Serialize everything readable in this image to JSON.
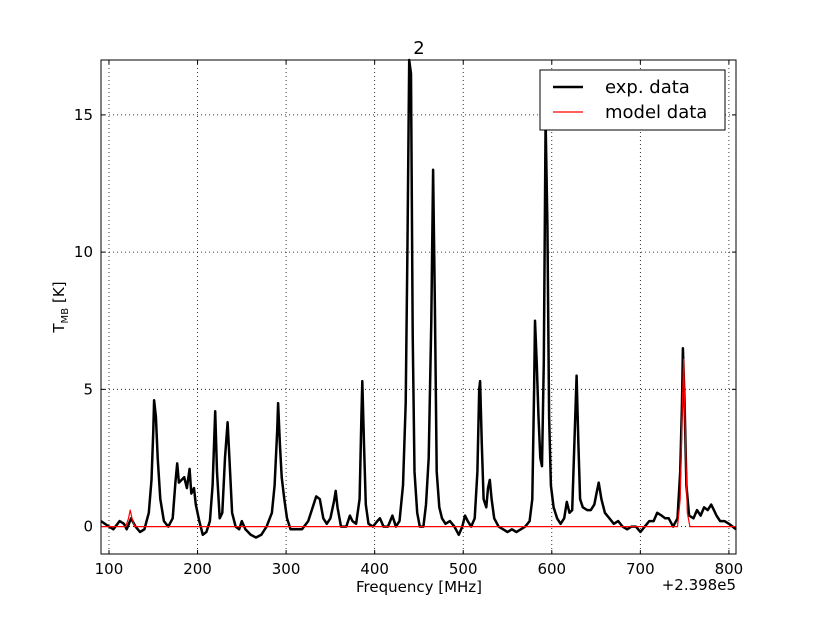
{
  "chart_data": {
    "type": "line",
    "title": "2",
    "xlabel": "Frequency [MHz]",
    "ylabel_parts": [
      "T",
      "MB",
      "[K]"
    ],
    "x_offset": "+2.398e5",
    "xlim": [
      91,
      808
    ],
    "ylim": [
      -1,
      17
    ],
    "xticks": [
      100,
      200,
      300,
      400,
      500,
      600,
      700,
      800
    ],
    "yticks": [
      0,
      5,
      10,
      15
    ],
    "grid": true,
    "legend": "upper right",
    "series": [
      {
        "name": "exp. data",
        "color": "#000000",
        "x": [
          91,
          100,
          105,
          112,
          117,
          120,
          125,
          130,
          135,
          140,
          145,
          148,
          150,
          151,
          153,
          155,
          158,
          162,
          167,
          172,
          175,
          177,
          179,
          182,
          185,
          188,
          191,
          193,
          196,
          198,
          202,
          206,
          210,
          214,
          217,
          220,
          222,
          225,
          228,
          231,
          234,
          236,
          239,
          243,
          247,
          250,
          254,
          260,
          266,
          272,
          278,
          284,
          287,
          290,
          291,
          293,
          295,
          298,
          301,
          305,
          310,
          318,
          325,
          330,
          334,
          338,
          342,
          346,
          350,
          354,
          356,
          358,
          362,
          368,
          372,
          375,
          379,
          383,
          385,
          386,
          388,
          390,
          393,
          398,
          403,
          406,
          410,
          415,
          420,
          424,
          428,
          432,
          435,
          437,
          439,
          441,
          443,
          445,
          448,
          451,
          455,
          458,
          461,
          464,
          466,
          468,
          470,
          473,
          476,
          480,
          485,
          490,
          495,
          499,
          502,
          505,
          509,
          513,
          516,
          518,
          519,
          521,
          523,
          526,
          528,
          530,
          532,
          535,
          540,
          545,
          550,
          555,
          560,
          565,
          570,
          575,
          578,
          580,
          581,
          583,
          585,
          587,
          589,
          591,
          593,
          595,
          597,
          599,
          602,
          606,
          610,
          614,
          617,
          620,
          623,
          626,
          628,
          630,
          632,
          635,
          640,
          644,
          648,
          651,
          653,
          656,
          660,
          665,
          670,
          675,
          680,
          685,
          690,
          695,
          700,
          705,
          710,
          715,
          719,
          724,
          728,
          732,
          737,
          742,
          745,
          747,
          748,
          750,
          752,
          755,
          760,
          764,
          768,
          772,
          776,
          780,
          783,
          786,
          790,
          795,
          800,
          808
        ],
        "values": [
          0.2,
          0,
          -0.1,
          0.2,
          0.1,
          -0.1,
          0.3,
          0,
          -0.2,
          -0.1,
          0.5,
          1.7,
          3.5,
          4.6,
          4,
          2.5,
          1,
          0.2,
          0,
          0.3,
          1.6,
          2.3,
          1.6,
          1.7,
          1.8,
          1.4,
          2.1,
          1.2,
          1.4,
          0.8,
          0.2,
          -0.3,
          -0.2,
          0.2,
          1.5,
          4.2,
          2,
          0.3,
          0.5,
          2.5,
          3.8,
          2.5,
          0.5,
          0,
          -0.1,
          0.2,
          -0.1,
          -0.3,
          -0.4,
          -0.3,
          0,
          0.5,
          1.5,
          3.5,
          4.5,
          3,
          1.8,
          1,
          0.3,
          -0.1,
          -0.1,
          -0.1,
          0.2,
          0.7,
          1.1,
          1,
          0.3,
          0.1,
          0.3,
          0.9,
          1.3,
          0.7,
          0,
          0,
          0.4,
          0.2,
          0.1,
          1,
          4,
          5.3,
          3,
          0.8,
          0.1,
          0,
          0.2,
          0.3,
          0,
          0,
          0.4,
          0,
          0.2,
          1.5,
          4.5,
          10,
          17,
          16.5,
          7,
          2,
          0.5,
          0,
          0,
          0.8,
          2.5,
          7.5,
          13,
          8,
          2,
          0.7,
          0.3,
          0.1,
          0.2,
          0,
          -0.3,
          0,
          0.4,
          0.2,
          0,
          0.3,
          2,
          5,
          5.3,
          3,
          1,
          0.7,
          1.4,
          1.7,
          1,
          0.3,
          0,
          -0.1,
          -0.2,
          -0.1,
          -0.2,
          -0.1,
          0,
          0.2,
          1,
          5,
          7.5,
          6,
          4,
          2.5,
          2.2,
          6,
          14.8,
          11,
          4,
          1.5,
          0.7,
          0.3,
          0.1,
          0.3,
          0.9,
          0.5,
          0.6,
          3.5,
          5.5,
          3,
          1,
          0.7,
          0.6,
          0.6,
          0.8,
          1.3,
          1.6,
          1,
          0.5,
          0.3,
          0.1,
          0.2,
          0,
          -0.1,
          0,
          0,
          -0.2,
          0,
          0.2,
          0.2,
          0.5,
          0.4,
          0.3,
          0.3,
          0,
          0.3,
          2,
          4.5,
          6.5,
          4.5,
          1.5,
          0.4,
          0.3,
          0.6,
          0.4,
          0.7,
          0.6,
          0.8,
          0.6,
          0.4,
          0.2,
          0.2,
          0.1,
          -0.1
        ]
      },
      {
        "name": "model data",
        "color": "#ff0000",
        "x": [
          91,
          119,
          122,
          124,
          126,
          129,
          742,
          745,
          747,
          749,
          751,
          753,
          756,
          808
        ],
        "values": [
          0,
          0,
          0.3,
          0.6,
          0.3,
          0,
          0,
          1,
          4,
          6.1,
          3,
          0.5,
          0,
          0
        ]
      }
    ]
  }
}
